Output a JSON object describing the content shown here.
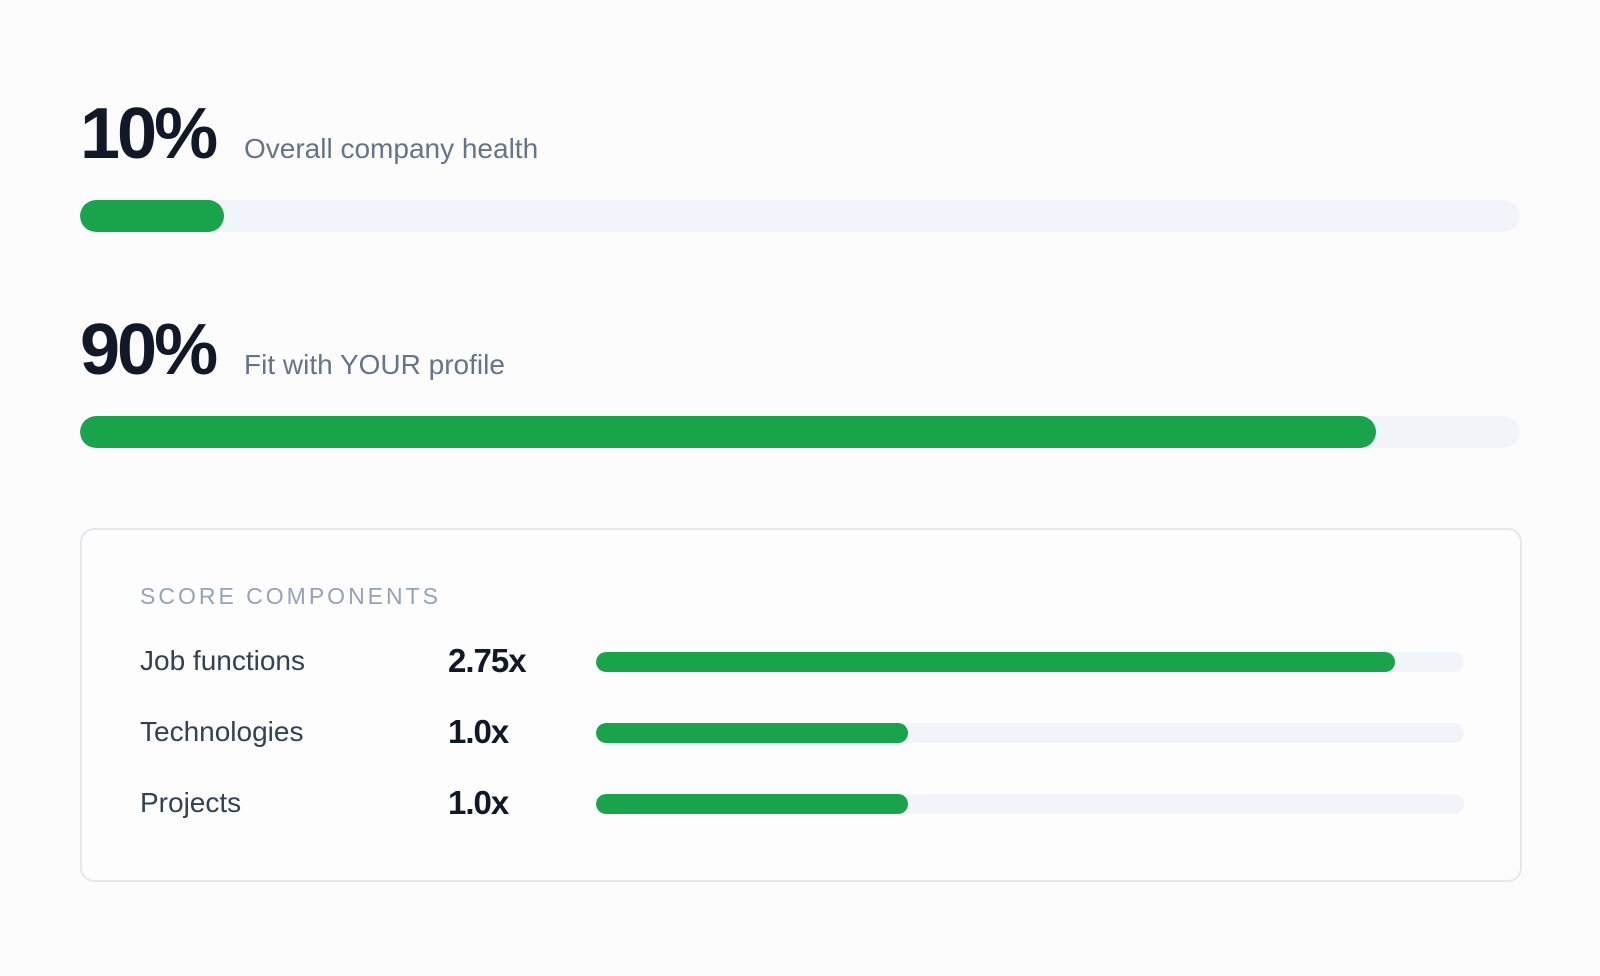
{
  "metrics": [
    {
      "value": "10%",
      "label": "Overall company health",
      "progress": 0.1
    },
    {
      "value": "90%",
      "label": "Fit with YOUR profile",
      "progress": 0.9
    }
  ],
  "score_components": {
    "title": "SCORE COMPONENTS",
    "items": [
      {
        "name": "Job functions",
        "multiplier": "2.75x",
        "progress": 0.92
      },
      {
        "name": "Technologies",
        "multiplier": "1.0x",
        "progress": 0.36
      },
      {
        "name": "Projects",
        "multiplier": "1.0x",
        "progress": 0.36
      }
    ]
  },
  "colors": {
    "accent_green": "#19a34b",
    "track_bg": "#f1f5f9",
    "label_gray": "#64748b",
    "heading_dark": "#111827",
    "card_border": "#e2e8f0"
  }
}
